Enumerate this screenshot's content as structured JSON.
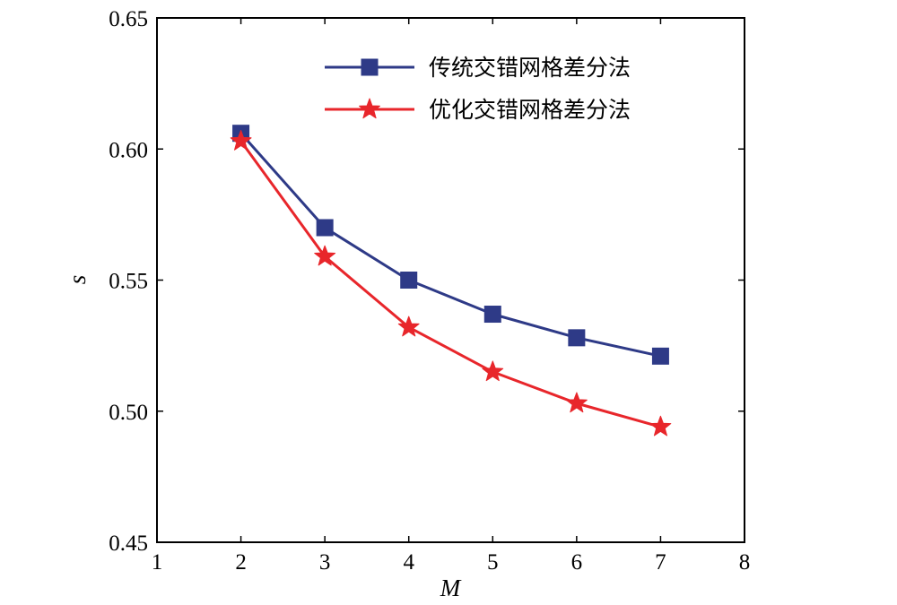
{
  "chart_data": {
    "type": "line",
    "xlabel": "M",
    "ylabel": "s",
    "xlim": [
      1,
      8
    ],
    "ylim": [
      0.45,
      0.65
    ],
    "x_ticks": [
      "1",
      "2",
      "3",
      "4",
      "5",
      "6",
      "7",
      "8"
    ],
    "y_ticks": [
      "0.45",
      "0.50",
      "0.55",
      "0.60",
      "0.65"
    ],
    "grid": false,
    "legend_position": "top-right",
    "x": [
      2,
      3,
      4,
      5,
      6,
      7
    ],
    "series": [
      {
        "name": "传统交错网格差分法",
        "marker": "square",
        "color": "#2e3a87",
        "values": [
          0.606,
          0.57,
          0.55,
          0.537,
          0.528,
          0.521
        ]
      },
      {
        "name": "优化交错网格差分法",
        "marker": "star",
        "color": "#e8262b",
        "values": [
          0.603,
          0.559,
          0.532,
          0.515,
          0.503,
          0.494
        ]
      }
    ]
  }
}
